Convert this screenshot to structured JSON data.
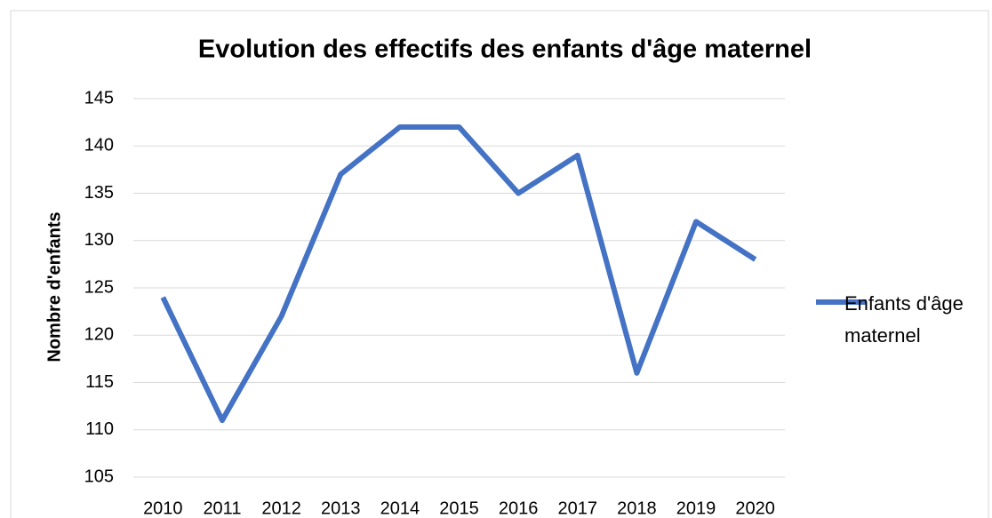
{
  "chart_data": {
    "type": "line",
    "title": "Evolution des effectifs des enfants d'âge maternel",
    "y_label": "Nombre d'enfants",
    "categories": [
      "2010",
      "2011",
      "2012",
      "2013",
      "2014",
      "2015",
      "2016",
      "2017",
      "2018",
      "2019",
      "2020"
    ],
    "series": [
      {
        "name": "Enfants d'âge maternel",
        "color": "#4472c4",
        "values": [
          124,
          111,
          122,
          137,
          142,
          142,
          135,
          139,
          116,
          132,
          128
        ]
      }
    ],
    "ylim": [
      105,
      145
    ],
    "yticks": [
      105,
      110,
      115,
      120,
      125,
      130,
      135,
      140,
      145
    ],
    "grid": true,
    "legend": "right"
  }
}
